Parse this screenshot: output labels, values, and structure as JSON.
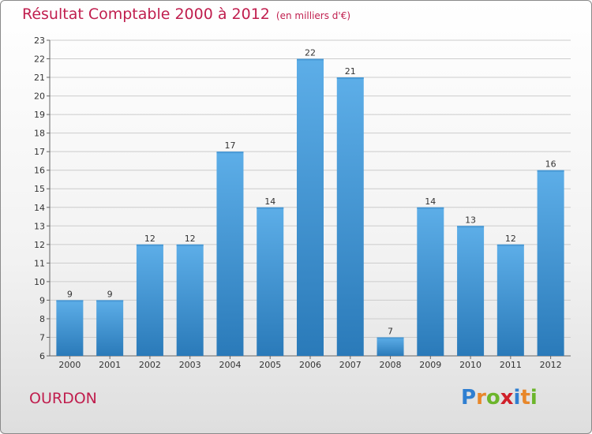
{
  "title": "Résultat Comptable 2000 à 2012",
  "unit": "(en milliers d'€)",
  "city": "OURDON",
  "brand": "Proxiti",
  "colors": {
    "title": "#c01e4e",
    "bar_top": "#5daee8",
    "bar_bottom": "#2a7ab9",
    "grid": "#cccccc"
  },
  "chart_data": {
    "type": "bar",
    "title": "Résultat Comptable 2000 à 2012",
    "subtitle": "(en milliers d'€)",
    "xlabel": "",
    "ylabel": "",
    "categories": [
      "2000",
      "2001",
      "2002",
      "2003",
      "2004",
      "2005",
      "2006",
      "2007",
      "2008",
      "2009",
      "2010",
      "2011",
      "2012"
    ],
    "values": [
      9,
      9,
      12,
      12,
      17,
      14,
      22,
      21,
      7,
      14,
      13,
      12,
      16
    ],
    "ylim": [
      6,
      23
    ],
    "yticks": [
      6,
      7,
      8,
      9,
      10,
      11,
      12,
      13,
      14,
      15,
      16,
      17,
      18,
      19,
      20,
      21,
      22,
      23
    ],
    "grid": true
  }
}
